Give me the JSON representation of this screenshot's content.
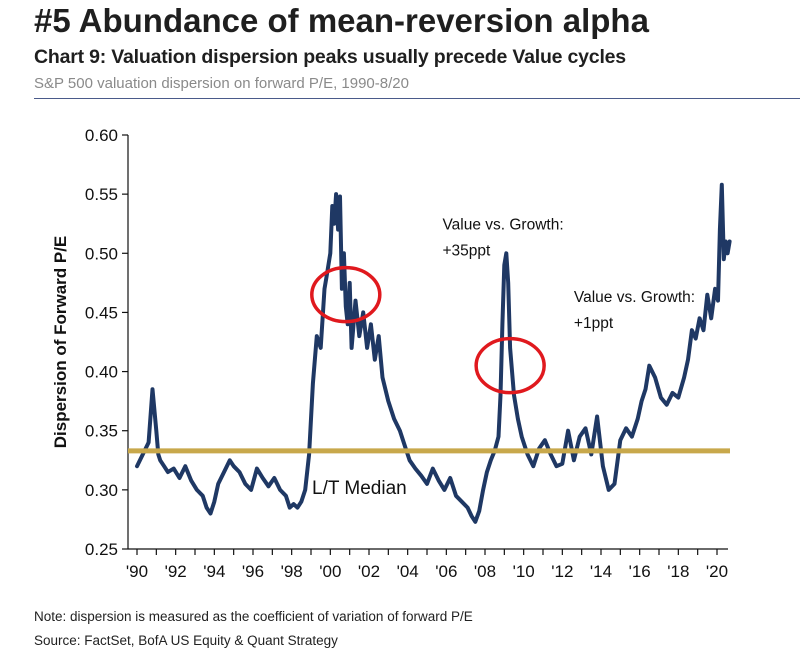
{
  "header": {
    "headline": "#5 Abundance of mean-reversion alpha",
    "chart_title": "Chart 9: Valuation dispersion peaks usually precede Value cycles",
    "subtitle": "S&P 500 valuation dispersion on forward P/E, 1990-8/20"
  },
  "footer": {
    "note": "Note: dispersion is measured as the coefficient of variation of forward P/E",
    "source": "Source: FactSet, BofA US Equity & Quant Strategy"
  },
  "colors": {
    "series": "#1f3864",
    "median_line": "#c8a84b",
    "circle": "#e0191e"
  },
  "chart_data": {
    "type": "line",
    "title": "Chart 9: Valuation dispersion peaks usually precede Value cycles",
    "xlabel": "",
    "ylabel": "Dispersion of Forward P/E",
    "xlim": [
      1990,
      2020.75
    ],
    "ylim": [
      0.25,
      0.6
    ],
    "x_ticks": [
      1990,
      1992,
      1994,
      1996,
      1998,
      2000,
      2002,
      2004,
      2006,
      2008,
      2010,
      2012,
      2014,
      2016,
      2018,
      2020
    ],
    "x_tick_labels": [
      "'90",
      "'92",
      "'94",
      "'96",
      "'98",
      "'00",
      "'02",
      "'04",
      "'06",
      "'08",
      "'10",
      "'12",
      "'14",
      "'16",
      "'18",
      "'20"
    ],
    "y_ticks": [
      0.25,
      0.3,
      0.35,
      0.4,
      0.45,
      0.5,
      0.55,
      0.6
    ],
    "y_tick_labels": [
      "0.25",
      "0.30",
      "0.35",
      "0.40",
      "0.45",
      "0.50",
      "0.55",
      "0.60"
    ],
    "grid": false,
    "legend": "none",
    "series": [
      {
        "x": [
          1990.0,
          1990.3,
          1990.6,
          1990.8,
          1991.0,
          1991.1,
          1991.2,
          1991.4,
          1991.6,
          1991.9,
          1992.2,
          1992.5,
          1992.8,
          1993.1,
          1993.4,
          1993.6,
          1993.8,
          1994.0,
          1994.2,
          1994.5,
          1994.8,
          1995.0,
          1995.3,
          1995.6,
          1995.9,
          1996.2,
          1996.5,
          1996.8,
          1997.1,
          1997.4,
          1997.7,
          1997.9,
          1998.1,
          1998.3,
          1998.5,
          1998.7,
          1998.9,
          1999.1,
          1999.3,
          1999.5,
          1999.7,
          1999.8,
          2000.0,
          2000.1,
          2000.2,
          2000.3,
          2000.4,
          2000.5,
          2000.6,
          2000.7,
          2000.8,
          2000.9,
          2001.0,
          2001.1,
          2001.3,
          2001.5,
          2001.7,
          2001.9,
          2002.1,
          2002.3,
          2002.5,
          2002.7,
          2003.0,
          2003.3,
          2003.6,
          2003.9,
          2004.1,
          2004.4,
          2004.7,
          2005.0,
          2005.3,
          2005.6,
          2005.9,
          2006.2,
          2006.5,
          2006.8,
          2007.1,
          2007.3,
          2007.5,
          2007.7,
          2007.9,
          2008.1,
          2008.3,
          2008.5,
          2008.7,
          2008.8,
          2008.9,
          2009.0,
          2009.1,
          2009.2,
          2009.3,
          2009.5,
          2009.7,
          2009.9,
          2010.2,
          2010.5,
          2010.8,
          2011.1,
          2011.4,
          2011.7,
          2012.0,
          2012.3,
          2012.6,
          2012.9,
          2013.2,
          2013.5,
          2013.8,
          2014.1,
          2014.4,
          2014.7,
          2015.0,
          2015.3,
          2015.6,
          2015.9,
          2016.1,
          2016.3,
          2016.5,
          2016.8,
          2017.1,
          2017.4,
          2017.7,
          2018.0,
          2018.3,
          2018.5,
          2018.7,
          2018.9,
          2019.1,
          2019.3,
          2019.5,
          2019.7,
          2019.9,
          2020.05,
          2020.15,
          2020.25,
          2020.35,
          2020.45,
          2020.55,
          2020.65
        ],
        "y": [
          0.32,
          0.33,
          0.34,
          0.385,
          0.35,
          0.33,
          0.325,
          0.32,
          0.315,
          0.318,
          0.31,
          0.32,
          0.308,
          0.3,
          0.295,
          0.285,
          0.28,
          0.29,
          0.305,
          0.315,
          0.325,
          0.32,
          0.315,
          0.305,
          0.3,
          0.318,
          0.31,
          0.303,
          0.31,
          0.3,
          0.295,
          0.285,
          0.288,
          0.285,
          0.29,
          0.3,
          0.33,
          0.39,
          0.43,
          0.42,
          0.47,
          0.48,
          0.5,
          0.54,
          0.525,
          0.55,
          0.52,
          0.548,
          0.47,
          0.5,
          0.455,
          0.44,
          0.475,
          0.42,
          0.46,
          0.43,
          0.45,
          0.42,
          0.44,
          0.41,
          0.43,
          0.395,
          0.375,
          0.36,
          0.35,
          0.335,
          0.325,
          0.318,
          0.312,
          0.305,
          0.318,
          0.308,
          0.3,
          0.31,
          0.295,
          0.29,
          0.285,
          0.278,
          0.273,
          0.282,
          0.3,
          0.315,
          0.325,
          0.333,
          0.345,
          0.38,
          0.44,
          0.49,
          0.5,
          0.475,
          0.42,
          0.38,
          0.36,
          0.345,
          0.33,
          0.32,
          0.335,
          0.342,
          0.33,
          0.32,
          0.322,
          0.35,
          0.325,
          0.345,
          0.352,
          0.33,
          0.362,
          0.32,
          0.3,
          0.305,
          0.342,
          0.352,
          0.345,
          0.36,
          0.375,
          0.385,
          0.405,
          0.395,
          0.378,
          0.372,
          0.382,
          0.378,
          0.395,
          0.41,
          0.435,
          0.428,
          0.445,
          0.435,
          0.465,
          0.445,
          0.47,
          0.46,
          0.52,
          0.558,
          0.495,
          0.51,
          0.5,
          0.51
        ]
      }
    ],
    "reference_lines": [
      {
        "label": "L/T Median",
        "y": 0.333
      }
    ],
    "annotations": [
      {
        "line1": "Value vs. Growth:",
        "line2": "+35ppt",
        "x": 2005.8,
        "y": 0.52
      },
      {
        "line1": "Value vs. Growth:",
        "line2": "+1ppt",
        "x": 2012.6,
        "y": 0.459
      }
    ],
    "highlight_circles": [
      {
        "x": 2000.8,
        "y": 0.465
      },
      {
        "x": 2009.3,
        "y": 0.405
      }
    ]
  }
}
